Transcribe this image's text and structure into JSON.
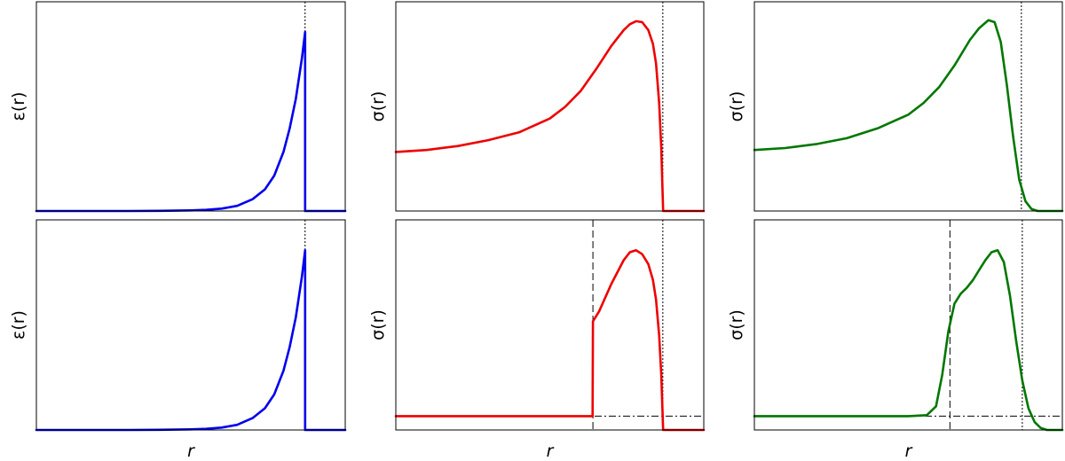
{
  "chart_data": [
    {
      "id": "top-left",
      "type": "line",
      "ylabel": "ε(r)",
      "xlabel": "",
      "color": "#0000ee",
      "xlim": [
        0,
        1
      ],
      "ylim": [
        0,
        1
      ],
      "vlines": [
        {
          "x": 0.87,
          "style": "dotted"
        }
      ],
      "hlines": [],
      "x": [
        0,
        0.1,
        0.2,
        0.3,
        0.4,
        0.5,
        0.55,
        0.6,
        0.65,
        0.7,
        0.74,
        0.77,
        0.8,
        0.82,
        0.84,
        0.86,
        0.87,
        0.8701,
        0.9,
        1.0
      ],
      "y": [
        0,
        0,
        0,
        0,
        0.001,
        0.003,
        0.006,
        0.012,
        0.026,
        0.06,
        0.11,
        0.18,
        0.3,
        0.42,
        0.57,
        0.78,
        0.91,
        0,
        0,
        0
      ]
    },
    {
      "id": "top-middle",
      "type": "line",
      "ylabel": "σ(r)",
      "xlabel": "",
      "color": "#ee0000",
      "xlim": [
        0,
        1
      ],
      "ylim": [
        0,
        1
      ],
      "vlines": [
        {
          "x": 0.867,
          "style": "dotted"
        }
      ],
      "hlines": [],
      "x": [
        0,
        0.1,
        0.2,
        0.3,
        0.4,
        0.5,
        0.55,
        0.6,
        0.65,
        0.7,
        0.74,
        0.76,
        0.78,
        0.8,
        0.82,
        0.835,
        0.845,
        0.855,
        0.862,
        0.868,
        0.9,
        1.0
      ],
      "y": [
        0.3,
        0.31,
        0.33,
        0.36,
        0.4,
        0.47,
        0.53,
        0.61,
        0.72,
        0.84,
        0.92,
        0.95,
        0.965,
        0.96,
        0.92,
        0.85,
        0.75,
        0.55,
        0.32,
        0.0,
        0,
        0
      ]
    },
    {
      "id": "top-right",
      "type": "line",
      "ylabel": "σ(r)",
      "xlabel": "",
      "color": "#007700",
      "xlim": [
        0,
        1
      ],
      "ylim": [
        0,
        1
      ],
      "vlines": [
        {
          "x": 0.867,
          "style": "dotted"
        }
      ],
      "hlines": [],
      "x": [
        0,
        0.1,
        0.2,
        0.3,
        0.4,
        0.5,
        0.55,
        0.6,
        0.65,
        0.7,
        0.73,
        0.76,
        0.78,
        0.8,
        0.82,
        0.84,
        0.86,
        0.88,
        0.9,
        0.92,
        0.95,
        1.0
      ],
      "y": [
        0.31,
        0.32,
        0.34,
        0.37,
        0.42,
        0.49,
        0.55,
        0.63,
        0.74,
        0.87,
        0.93,
        0.97,
        0.96,
        0.86,
        0.64,
        0.38,
        0.16,
        0.05,
        0.01,
        0.0,
        0,
        0
      ]
    },
    {
      "id": "bottom-left",
      "type": "line",
      "ylabel": "ε(r)",
      "xlabel": "r",
      "color": "#0000ee",
      "xlim": [
        0,
        1
      ],
      "ylim": [
        0,
        1
      ],
      "vlines": [
        {
          "x": 0.87,
          "style": "dotted"
        }
      ],
      "hlines": [],
      "x": [
        0,
        0.1,
        0.2,
        0.3,
        0.4,
        0.5,
        0.55,
        0.6,
        0.65,
        0.7,
        0.74,
        0.77,
        0.8,
        0.82,
        0.84,
        0.86,
        0.87,
        0.8701,
        0.9,
        1.0
      ],
      "y": [
        0,
        0,
        0,
        0,
        0.001,
        0.003,
        0.006,
        0.012,
        0.026,
        0.06,
        0.11,
        0.18,
        0.3,
        0.42,
        0.57,
        0.78,
        0.91,
        0,
        0,
        0
      ]
    },
    {
      "id": "bottom-middle",
      "type": "line",
      "ylabel": "σ(r)",
      "xlabel": "r",
      "color": "#ee0000",
      "xlim": [
        0,
        1
      ],
      "ylim": [
        0,
        1
      ],
      "vlines": [
        {
          "x": 0.64,
          "style": "dashed"
        },
        {
          "x": 0.867,
          "style": "dotted"
        }
      ],
      "hlines": [
        {
          "y": 0.07,
          "style": "dashdot"
        }
      ],
      "x": [
        0,
        0.1,
        0.2,
        0.3,
        0.4,
        0.5,
        0.6,
        0.639,
        0.64,
        0.66,
        0.7,
        0.74,
        0.76,
        0.78,
        0.8,
        0.82,
        0.835,
        0.845,
        0.855,
        0.862,
        0.868,
        0.9,
        1.0
      ],
      "y": [
        0.07,
        0.07,
        0.07,
        0.07,
        0.07,
        0.07,
        0.07,
        0.07,
        0.55,
        0.6,
        0.74,
        0.86,
        0.9,
        0.91,
        0.89,
        0.84,
        0.76,
        0.66,
        0.48,
        0.28,
        0.0,
        0,
        0
      ]
    },
    {
      "id": "bottom-right",
      "type": "line",
      "ylabel": "σ(r)",
      "xlabel": "r",
      "color": "#007700",
      "xlim": [
        0,
        1
      ],
      "ylim": [
        0,
        1
      ],
      "vlines": [
        {
          "x": 0.635,
          "style": "dashed"
        },
        {
          "x": 0.87,
          "style": "dotted"
        }
      ],
      "hlines": [
        {
          "y": 0.07,
          "style": "dashdot"
        }
      ],
      "x": [
        0,
        0.1,
        0.2,
        0.3,
        0.4,
        0.5,
        0.56,
        0.59,
        0.61,
        0.63,
        0.65,
        0.67,
        0.69,
        0.71,
        0.73,
        0.75,
        0.77,
        0.79,
        0.81,
        0.83,
        0.85,
        0.87,
        0.89,
        0.91,
        0.93,
        0.95,
        1.0
      ],
      "y": [
        0.07,
        0.07,
        0.07,
        0.07,
        0.07,
        0.07,
        0.075,
        0.12,
        0.28,
        0.5,
        0.64,
        0.69,
        0.72,
        0.76,
        0.81,
        0.86,
        0.9,
        0.91,
        0.85,
        0.68,
        0.45,
        0.25,
        0.11,
        0.04,
        0.01,
        0.0,
        0.0
      ]
    }
  ]
}
